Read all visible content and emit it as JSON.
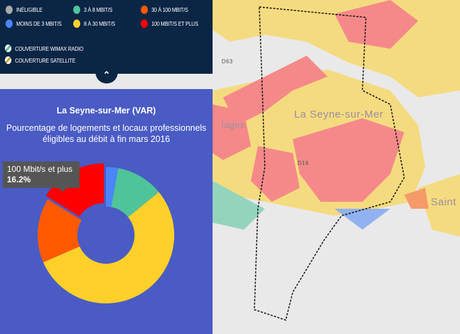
{
  "legend": {
    "items": [
      {
        "label": "INÉLIGIBLE",
        "color": "#a8a8a8"
      },
      {
        "label": "MOINS DE 3 MBIT/S",
        "color": "#4a86f7"
      },
      {
        "label": "3 À 8 MBIT/S",
        "color": "#4fc39a"
      },
      {
        "label": "8 À 30 MBIT/S",
        "color": "#ffd02a"
      },
      {
        "label": "30 À 100 MBIT/S",
        "color": "#ff5a00"
      },
      {
        "label": "100 MBIT/S ET PLUS",
        "color": "#ff0000"
      }
    ],
    "coverage": [
      {
        "label": "COUVERTURE WIMAX RADIO",
        "icon": "wimax-stripe-icon"
      },
      {
        "label": "COUVERTURE SATELLITE",
        "icon": "satellite-stripe-icon"
      }
    ],
    "toggle_icon": "chevron-up-icon"
  },
  "map": {
    "labels": {
      "city": "La Seyne-sur-Mer",
      "road1": "D63",
      "road2": "D16",
      "left": "lages",
      "right": "Saint"
    }
  },
  "panel": {
    "title": "La Seyne-sur-Mer (VAR)",
    "subtitle": "Pourcentage de logements et locaux professionnels éligibles au débit à fin mars 2016",
    "tooltip": {
      "label": "100 Mbit/s et plus",
      "value": "16.2%"
    }
  },
  "chart_data": {
    "type": "pie",
    "donut": true,
    "categories": [
      "Moins de 3 Mbit/s",
      "3 à 8 Mbit/s",
      "8 à 30 Mbit/s",
      "30 à 100 Mbit/s",
      "100 Mbit/s et plus"
    ],
    "values": [
      2.9,
      11.2,
      54.4,
      15.3,
      16.2
    ],
    "colors": [
      "#4a86f7",
      "#4fc39a",
      "#ffd02a",
      "#ff5a00",
      "#ff0000"
    ],
    "highlighted": "100 Mbit/s et plus"
  }
}
